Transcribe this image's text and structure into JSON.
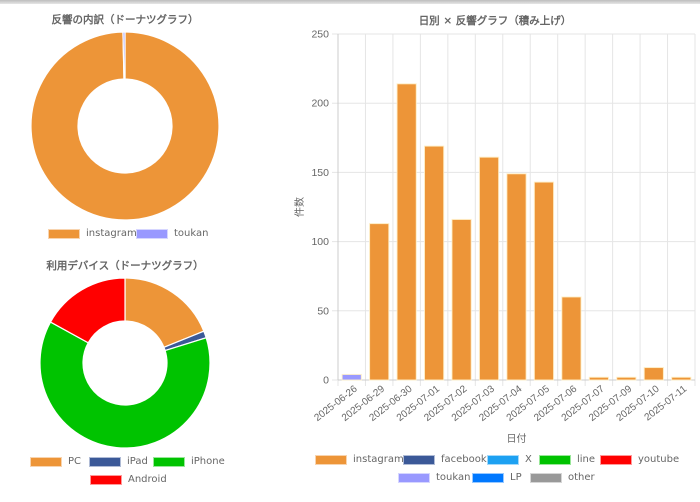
{
  "colors": {
    "instagram": "#ed9538",
    "facebook": "#3b5998",
    "X": "#1da1f2",
    "line": "#00c300",
    "youtube": "#ff0000",
    "toukan": "#9999ff",
    "LP": "#0078ff",
    "other": "#999999",
    "PC": "#ed9538",
    "iPad": "#3b5998",
    "iPhone": "#00c300",
    "Android": "#ff0000",
    "grid": "#e5e5e5",
    "axis_text": "#666666"
  },
  "response_donut": {
    "title": "反響の内訳（ドーナツグラフ）",
    "legend": [
      {
        "label": "instagram",
        "color": "#ed9538"
      },
      {
        "label": "toukan",
        "color": "#9999ff"
      }
    ]
  },
  "device_donut": {
    "title": "利用デバイス（ドーナツグラフ）",
    "legend": [
      {
        "label": "PC",
        "color": "#ed9538"
      },
      {
        "label": "iPad",
        "color": "#3b5998"
      },
      {
        "label": "iPhone",
        "color": "#00c300"
      },
      {
        "label": "Android",
        "color": "#ff0000"
      }
    ]
  },
  "bar_chart": {
    "title": "日別 × 反響グラフ（積み上げ）",
    "xlabel": "日付",
    "ylabel": "件数",
    "yticks": [
      "250",
      "200",
      "150",
      "100",
      "50",
      "0"
    ],
    "legend": [
      {
        "label": "instagram",
        "color": "#ed9538"
      },
      {
        "label": "facebook",
        "color": "#3b5998"
      },
      {
        "label": "X",
        "color": "#1da1f2"
      },
      {
        "label": "line",
        "color": "#00c300"
      },
      {
        "label": "youtube",
        "color": "#ff0000"
      },
      {
        "label": "toukan",
        "color": "#9999ff"
      },
      {
        "label": "LP",
        "color": "#0078ff"
      },
      {
        "label": "other",
        "color": "#999999"
      }
    ]
  },
  "chart_data": [
    {
      "type": "pie",
      "variant": "doughnut",
      "title": "反響の内訳（ドーナツグラフ）",
      "labels": [
        "instagram",
        "toukan"
      ],
      "values": [
        1140,
        4
      ],
      "colors": [
        "#ed9538",
        "#9999ff"
      ],
      "legend_position": "bottom"
    },
    {
      "type": "pie",
      "variant": "doughnut",
      "title": "利用デバイス（ドーナツグラフ）",
      "labels": [
        "PC",
        "iPad",
        "iPhone",
        "Android"
      ],
      "values": [
        18.9,
        1.3,
        62.8,
        17.0
      ],
      "value_unit": "approx %",
      "colors": [
        "#ed9538",
        "#3b5998",
        "#00c300",
        "#ff0000"
      ],
      "legend_position": "bottom"
    },
    {
      "type": "bar",
      "stacked": true,
      "title": "日別 × 反響グラフ（積み上げ）",
      "xlabel": "日付",
      "ylabel": "件数",
      "ylim": [
        0,
        250
      ],
      "yticks": [
        0,
        50,
        100,
        150,
        200,
        250
      ],
      "grid": true,
      "legend_position": "bottom",
      "categories": [
        "2025-06-26",
        "2025-06-29",
        "2025-06-30",
        "2025-07-01",
        "2025-07-02",
        "2025-07-03",
        "2025-07-04",
        "2025-07-05",
        "2025-07-06",
        "2025-07-07",
        "2025-07-09",
        "2025-07-10",
        "2025-07-11"
      ],
      "series": [
        {
          "name": "instagram",
          "color": "#ed9538",
          "values": [
            0,
            113,
            214,
            169,
            116,
            161,
            149,
            143,
            60,
            2,
            2,
            9,
            2
          ]
        },
        {
          "name": "facebook",
          "color": "#3b5998",
          "values": [
            0,
            0,
            0,
            0,
            0,
            0,
            0,
            0,
            0,
            0,
            0,
            0,
            0
          ]
        },
        {
          "name": "X",
          "color": "#1da1f2",
          "values": [
            0,
            0,
            0,
            0,
            0,
            0,
            0,
            0,
            0,
            0,
            0,
            0,
            0
          ]
        },
        {
          "name": "line",
          "color": "#00c300",
          "values": [
            0,
            0,
            0,
            0,
            0,
            0,
            0,
            0,
            0,
            0,
            0,
            0,
            0
          ]
        },
        {
          "name": "youtube",
          "color": "#ff0000",
          "values": [
            0,
            0,
            0,
            0,
            0,
            0,
            0,
            0,
            0,
            0,
            0,
            0,
            0
          ]
        },
        {
          "name": "toukan",
          "color": "#9999ff",
          "values": [
            4,
            0,
            0,
            0,
            0,
            0,
            0,
            0,
            0,
            0,
            0,
            0,
            0
          ]
        },
        {
          "name": "LP",
          "color": "#0078ff",
          "values": [
            0,
            0,
            0,
            0,
            0,
            0,
            0,
            0,
            0,
            0,
            0,
            0,
            0
          ]
        },
        {
          "name": "other",
          "color": "#999999",
          "values": [
            0,
            0,
            0,
            0,
            0,
            0,
            0,
            0,
            0,
            0,
            0,
            0,
            0
          ]
        }
      ]
    }
  ]
}
